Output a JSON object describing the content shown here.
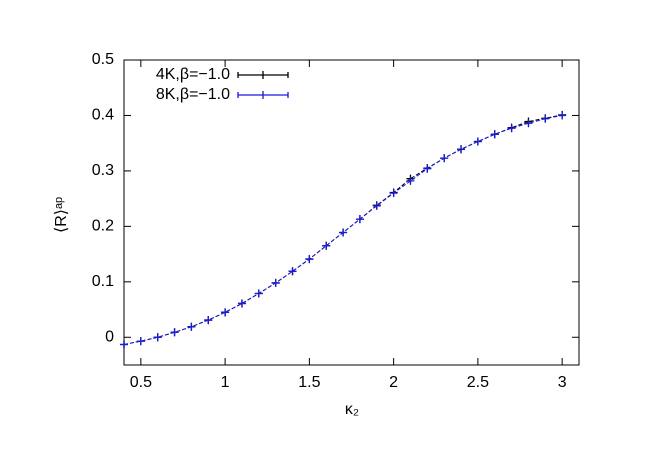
{
  "chart_data": {
    "type": "line",
    "xlabel": "κ₂",
    "ylabel": "⟨R⟩ᵃᵖ",
    "x": [
      0.4,
      0.5,
      0.6,
      0.7,
      0.8,
      0.9,
      1.0,
      1.1,
      1.2,
      1.3,
      1.4,
      1.5,
      1.6,
      1.7,
      1.8,
      1.9,
      2.0,
      2.1,
      2.2,
      2.3,
      2.4,
      2.5,
      2.6,
      2.7,
      2.8,
      2.9,
      3.0
    ],
    "series": [
      {
        "name": "4K,β=−1.0",
        "color": "#000000",
        "values": [
          -0.013,
          -0.007,
          0.0,
          0.009,
          0.019,
          0.031,
          0.045,
          0.061,
          0.079,
          0.098,
          0.119,
          0.141,
          0.165,
          0.189,
          0.213,
          0.238,
          0.261,
          0.286,
          0.305,
          0.323,
          0.339,
          0.353,
          0.366,
          0.378,
          0.389,
          0.395,
          0.401
        ]
      },
      {
        "name": "8K,β=−1.0",
        "color": "#1a1adb",
        "values": [
          -0.013,
          -0.007,
          0.0,
          0.009,
          0.019,
          0.031,
          0.045,
          0.061,
          0.079,
          0.098,
          0.119,
          0.141,
          0.165,
          0.189,
          0.213,
          0.237,
          0.26,
          0.282,
          0.304,
          0.323,
          0.339,
          0.353,
          0.366,
          0.377,
          0.386,
          0.394,
          0.4
        ]
      }
    ],
    "xlim": [
      0.4,
      3.1
    ],
    "ylim": [
      -0.05,
      0.5
    ],
    "xticks": [
      0.5,
      1,
      1.5,
      2,
      2.5,
      3
    ],
    "yticks": [
      0,
      0.1,
      0.2,
      0.3,
      0.4,
      0.5
    ],
    "legend": "top-left"
  }
}
